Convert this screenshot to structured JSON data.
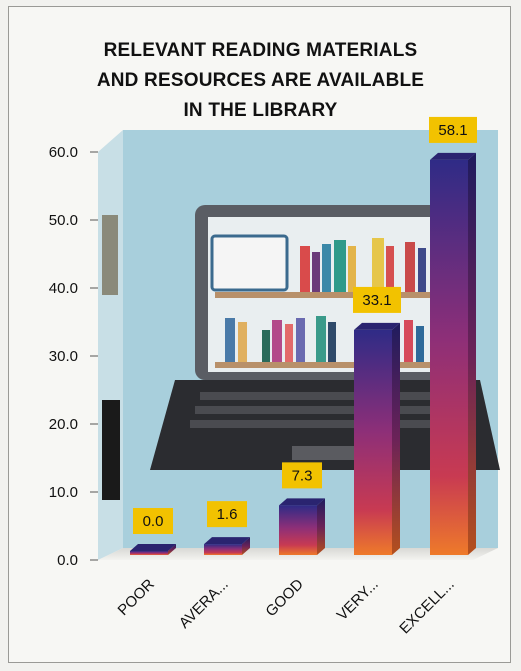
{
  "chart_data": {
    "type": "bar",
    "title_lines": [
      "RELEVANT READING MATERIALS",
      "AND RESOURCES ARE AVAILABLE",
      "IN THE LIBRARY"
    ],
    "categories": [
      "POOR",
      "AVERA...",
      "GOOD",
      "VERY...",
      "EXCELL..."
    ],
    "values": [
      0.0,
      1.6,
      7.3,
      33.1,
      58.1
    ],
    "data_labels": [
      "0.0",
      "1.6",
      "7.3",
      "33.1",
      "58.1"
    ],
    "y_ticks": [
      "0.0",
      "10.0",
      "20.0",
      "30.0",
      "40.0",
      "50.0",
      "60.0"
    ],
    "ylim": [
      0,
      60
    ],
    "xlabel": "",
    "ylabel": "",
    "grid": false,
    "legend": "none",
    "colors": {
      "label_box": "#f2c200",
      "bar_top": "#3a2f8f",
      "bar_mid": "#a3306e",
      "bar_bottom": "#e96a2a",
      "background_panel": "#a9cfdc"
    }
  }
}
